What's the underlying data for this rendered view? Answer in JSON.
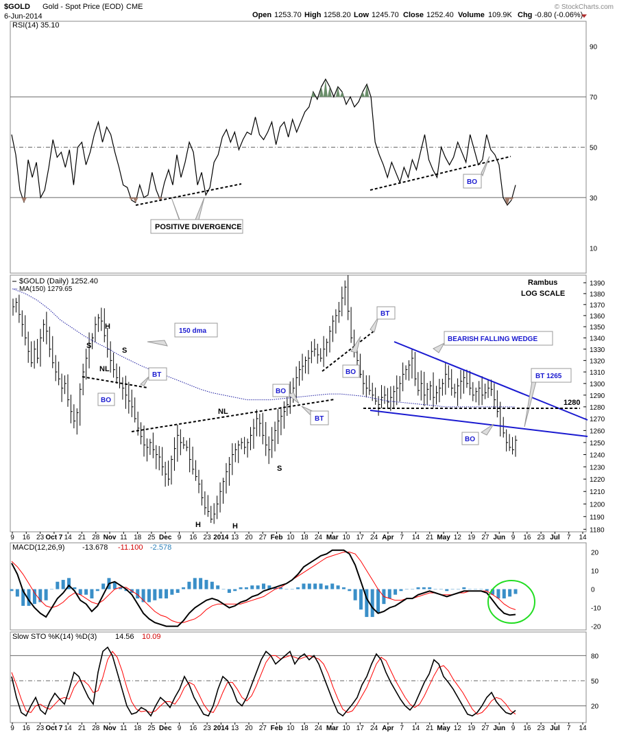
{
  "header": {
    "symbol": "$GOLD",
    "description": "Gold - Spot Price (EOD)",
    "exchange": "CME",
    "date": "6-Jun-2014",
    "watermark": "© StockCharts.com",
    "open_label": "Open",
    "open": "1253.70",
    "high_label": "High",
    "high": "1258.20",
    "low_label": "Low",
    "low": "1245.70",
    "close_label": "Close",
    "close": "1252.40",
    "volume_label": "Volume",
    "volume": "109.9K",
    "chg_label": "Chg",
    "chg": "-0.80 (-0.06%)"
  },
  "colors": {
    "price_bar": "#000000",
    "ma_line": "#1a1aa0",
    "annotation_blue": "#1a1ad0",
    "macd_line": "#000000",
    "signal_line": "#ff0000",
    "histogram": "#3a8fc8",
    "sto_k": "#000000",
    "sto_d": "#ff0000",
    "circle": "#22dd22",
    "rsi_overbought_fill": "#6b8f6b",
    "rsi_oversold_fill": "#a07a6a"
  },
  "x_axis": {
    "ticks": [
      "9",
      "16",
      "23",
      "Oct 7",
      "14",
      "21",
      "28",
      "Nov",
      "11",
      "18",
      "25",
      "Dec",
      "9",
      "16",
      "23",
      "2014",
      "13",
      "20",
      "27",
      "Feb",
      "10",
      "18",
      "24",
      "Mar",
      "10",
      "17",
      "24",
      "Apr",
      "7",
      "14",
      "21",
      "May",
      "12",
      "19",
      "27",
      "Jun",
      "9",
      "16",
      "23",
      "Jul",
      "7",
      "14"
    ]
  },
  "chart_data": [
    {
      "type": "line",
      "title": "RSI(14) 35.10",
      "ylim": [
        0,
        100
      ],
      "yticks": [
        90,
        70,
        50,
        30,
        10
      ],
      "reference_lines": [
        70,
        50,
        30
      ],
      "series": [
        {
          "name": "RSI(14)",
          "values": [
            55,
            47,
            33,
            28,
            45,
            38,
            44,
            30,
            33,
            42,
            53,
            46,
            48,
            42,
            49,
            35,
            50,
            52,
            43,
            48,
            55,
            60,
            52,
            58,
            55,
            48,
            42,
            35,
            34,
            29,
            28,
            35,
            30,
            31,
            40,
            33,
            29,
            36,
            41,
            35,
            47,
            38,
            44,
            52,
            48,
            35,
            40,
            31,
            34,
            44,
            47,
            54,
            57,
            52,
            56,
            49,
            53,
            56,
            55,
            62,
            55,
            53,
            56,
            60,
            51,
            58,
            60,
            54,
            61,
            56,
            60,
            64,
            66,
            72,
            69,
            74,
            77,
            74,
            70,
            74,
            72,
            67,
            70,
            66,
            68,
            72,
            75,
            70,
            52,
            47,
            43,
            38,
            44,
            40,
            36,
            42,
            38,
            45,
            41,
            48,
            55,
            45,
            41,
            38,
            50,
            46,
            43,
            46,
            52,
            48,
            44,
            55,
            49,
            43,
            45,
            55,
            49,
            47,
            43,
            30,
            27,
            29,
            35
          ]
        }
      ],
      "annotations": [
        "POSITIVE DIVERGENCE",
        "BO"
      ]
    },
    {
      "type": "line",
      "title": "$GOLD (Daily) 1252.40",
      "subtitle": "MA(150) 1279.65",
      "scale": "log",
      "ylim": [
        1178,
        1397
      ],
      "yticks": [
        1390,
        1380,
        1370,
        1360,
        1350,
        1340,
        1330,
        1320,
        1310,
        1300,
        1290,
        1280,
        1270,
        1260,
        1250,
        1240,
        1230,
        1220,
        1210,
        1200,
        1190,
        1180
      ],
      "series": [
        {
          "name": "$GOLD (Daily)",
          "values": [
            1368,
            1372,
            1361,
            1352,
            1340,
            1328,
            1318,
            1330,
            1322,
            1340,
            1352,
            1346,
            1330,
            1318,
            1310,
            1304,
            1296,
            1300,
            1286,
            1276,
            1268,
            1275,
            1295,
            1310,
            1322,
            1335,
            1340,
            1352,
            1358,
            1355,
            1342,
            1330,
            1320,
            1312,
            1305,
            1300,
            1296,
            1290,
            1285,
            1280,
            1270,
            1262,
            1255,
            1248,
            1246,
            1250,
            1244,
            1240,
            1238,
            1230,
            1224,
            1220,
            1236,
            1245,
            1256,
            1250,
            1248,
            1246,
            1236,
            1228,
            1222,
            1216,
            1205,
            1197,
            1194,
            1188,
            1192,
            1200,
            1210,
            1218,
            1226,
            1232,
            1240,
            1244,
            1248,
            1250,
            1246,
            1250,
            1256,
            1262,
            1270,
            1266,
            1256,
            1248,
            1244,
            1252,
            1260,
            1268,
            1272,
            1276,
            1282,
            1290,
            1296,
            1305,
            1312,
            1315,
            1320,
            1322,
            1328,
            1330,
            1325,
            1322,
            1330,
            1336,
            1346,
            1355,
            1360,
            1364,
            1376,
            1386,
            1364,
            1340,
            1328,
            1320,
            1308,
            1300,
            1296,
            1294,
            1290,
            1285,
            1282,
            1288,
            1290,
            1284,
            1288,
            1293,
            1296,
            1300,
            1308,
            1312,
            1316,
            1322,
            1304,
            1294,
            1300,
            1290,
            1295,
            1298,
            1288,
            1292,
            1296,
            1300,
            1308,
            1304,
            1296,
            1292,
            1298,
            1302,
            1305,
            1300,
            1296,
            1290,
            1293,
            1296,
            1290,
            1292,
            1296,
            1295,
            1286,
            1276,
            1264,
            1258,
            1250,
            1246,
            1244,
            1252
          ]
        },
        {
          "name": "MA(150)",
          "values": [
            1384,
            1380,
            1374,
            1366,
            1356,
            1349,
            1342,
            1336,
            1331,
            1325,
            1320,
            1315,
            1311,
            1307,
            1303,
            1299,
            1295,
            1292,
            1290,
            1288,
            1286,
            1286,
            1286,
            1287,
            1288,
            1289,
            1290,
            1291,
            1291,
            1290,
            1289,
            1287,
            1285,
            1284,
            1283,
            1282,
            1281,
            1280,
            1280,
            1280,
            1280,
            1280,
            1280,
            1280
          ]
        }
      ],
      "annotations": [
        "Rambus",
        "LOG SCALE",
        "H",
        "S",
        "NL",
        "BO",
        "BT",
        "S",
        "H",
        "H",
        "150 dma",
        "NL",
        "BO",
        "BT",
        "S",
        "BT",
        "BO",
        "BEARISH FALLING WEDGE",
        "BO",
        "BT 1265",
        "1280"
      ]
    },
    {
      "type": "line",
      "title": "MACD(12,26,9)",
      "legend_values": [
        "-13.678",
        "-11.100",
        "-2.578"
      ],
      "ylim": [
        -22,
        25
      ],
      "yticks": [
        20,
        10,
        0,
        -10,
        -20
      ],
      "series": [
        {
          "name": "MACD",
          "values": [
            14,
            8,
            -1,
            -6,
            -10,
            -13,
            -15,
            -10,
            -5,
            -2,
            2,
            -1,
            -6,
            -8,
            -12,
            -9,
            -3,
            3,
            4,
            2,
            0,
            -3,
            -8,
            -13,
            -16,
            -18,
            -19,
            -20,
            -20,
            -20,
            -17,
            -13,
            -10,
            -8,
            -6,
            -5,
            -6,
            -8,
            -10,
            -9,
            -7,
            -6,
            -4,
            -3,
            -1,
            0,
            1,
            2,
            3,
            5,
            8,
            12,
            14,
            16,
            18,
            19,
            21,
            21,
            21,
            19,
            13,
            4,
            -5,
            -10,
            -13,
            -12,
            -10,
            -9,
            -7,
            -5,
            -5,
            -3,
            -2,
            -1,
            -2,
            -3,
            -4,
            -3,
            -2,
            -1,
            -1,
            -1,
            -1,
            -2,
            -6,
            -10,
            -13,
            -14,
            -13.678
          ]
        },
        {
          "name": "Signal",
          "values": [
            15,
            12,
            8,
            3,
            -2,
            -6,
            -9,
            -10,
            -9,
            -7,
            -4,
            -2,
            -3,
            -5,
            -7,
            -8,
            -6,
            -3,
            0,
            1,
            1,
            -1,
            -3,
            -6,
            -9,
            -12,
            -14,
            -15,
            -17,
            -18,
            -18,
            -17,
            -16,
            -14,
            -11,
            -9,
            -8,
            -8,
            -8,
            -8,
            -8,
            -7,
            -6,
            -5,
            -4,
            -2,
            0,
            1,
            3,
            5,
            7,
            9,
            11,
            13,
            15,
            17,
            18,
            19,
            20,
            20,
            19,
            15,
            10,
            5,
            0,
            -4,
            -5,
            -6,
            -6,
            -5,
            -5,
            -4,
            -3,
            -2,
            -2,
            -3,
            -3,
            -3,
            -2,
            -2,
            -1,
            -1,
            -1,
            -1,
            -3,
            -5,
            -8,
            -10,
            -11.1
          ]
        }
      ]
    },
    {
      "type": "line",
      "title": "Slow STO %K(14) %D(3)",
      "legend_values": [
        "14.56",
        "10.09"
      ],
      "ylim": [
        0,
        100
      ],
      "yticks": [
        80,
        50,
        20
      ],
      "reference_lines": [
        80,
        50,
        20
      ],
      "series": [
        {
          "name": "%K(14)",
          "values": [
            55,
            30,
            12,
            8,
            20,
            30,
            15,
            10,
            25,
            35,
            28,
            22,
            40,
            60,
            55,
            42,
            30,
            22,
            60,
            85,
            90,
            80,
            60,
            40,
            20,
            10,
            12,
            18,
            15,
            8,
            20,
            30,
            25,
            18,
            30,
            40,
            55,
            45,
            30,
            20,
            10,
            8,
            20,
            40,
            55,
            50,
            40,
            25,
            20,
            30,
            45,
            60,
            75,
            85,
            80,
            70,
            75,
            80,
            85,
            70,
            78,
            82,
            75,
            80,
            70,
            55,
            40,
            25,
            12,
            8,
            15,
            22,
            30,
            45,
            55,
            70,
            82,
            75,
            60,
            48,
            38,
            28,
            20,
            15,
            22,
            35,
            48,
            58,
            75,
            70,
            55,
            48,
            40,
            30,
            20,
            10,
            8,
            12,
            20,
            30,
            36,
            25,
            18,
            12,
            10,
            14.56
          ]
        },
        {
          "name": "%D(3)",
          "values": [
            60,
            45,
            28,
            14,
            12,
            20,
            22,
            18,
            16,
            22,
            28,
            30,
            28,
            42,
            50,
            50,
            45,
            36,
            38,
            54,
            75,
            85,
            78,
            62,
            42,
            25,
            16,
            13,
            14,
            12,
            14,
            20,
            25,
            25,
            22,
            30,
            42,
            48,
            45,
            34,
            22,
            14,
            12,
            22,
            36,
            48,
            48,
            40,
            30,
            26,
            32,
            44,
            58,
            72,
            80,
            80,
            76,
            78,
            80,
            78,
            76,
            78,
            80,
            78,
            76,
            70,
            58,
            42,
            28,
            16,
            12,
            14,
            22,
            32,
            42,
            56,
            70,
            78,
            74,
            62,
            50,
            40,
            30,
            22,
            18,
            22,
            32,
            44,
            56,
            66,
            68,
            62,
            52,
            44,
            36,
            26,
            16,
            10,
            12,
            18,
            26,
            30,
            28,
            22,
            14,
            10.09
          ]
        }
      ]
    }
  ]
}
